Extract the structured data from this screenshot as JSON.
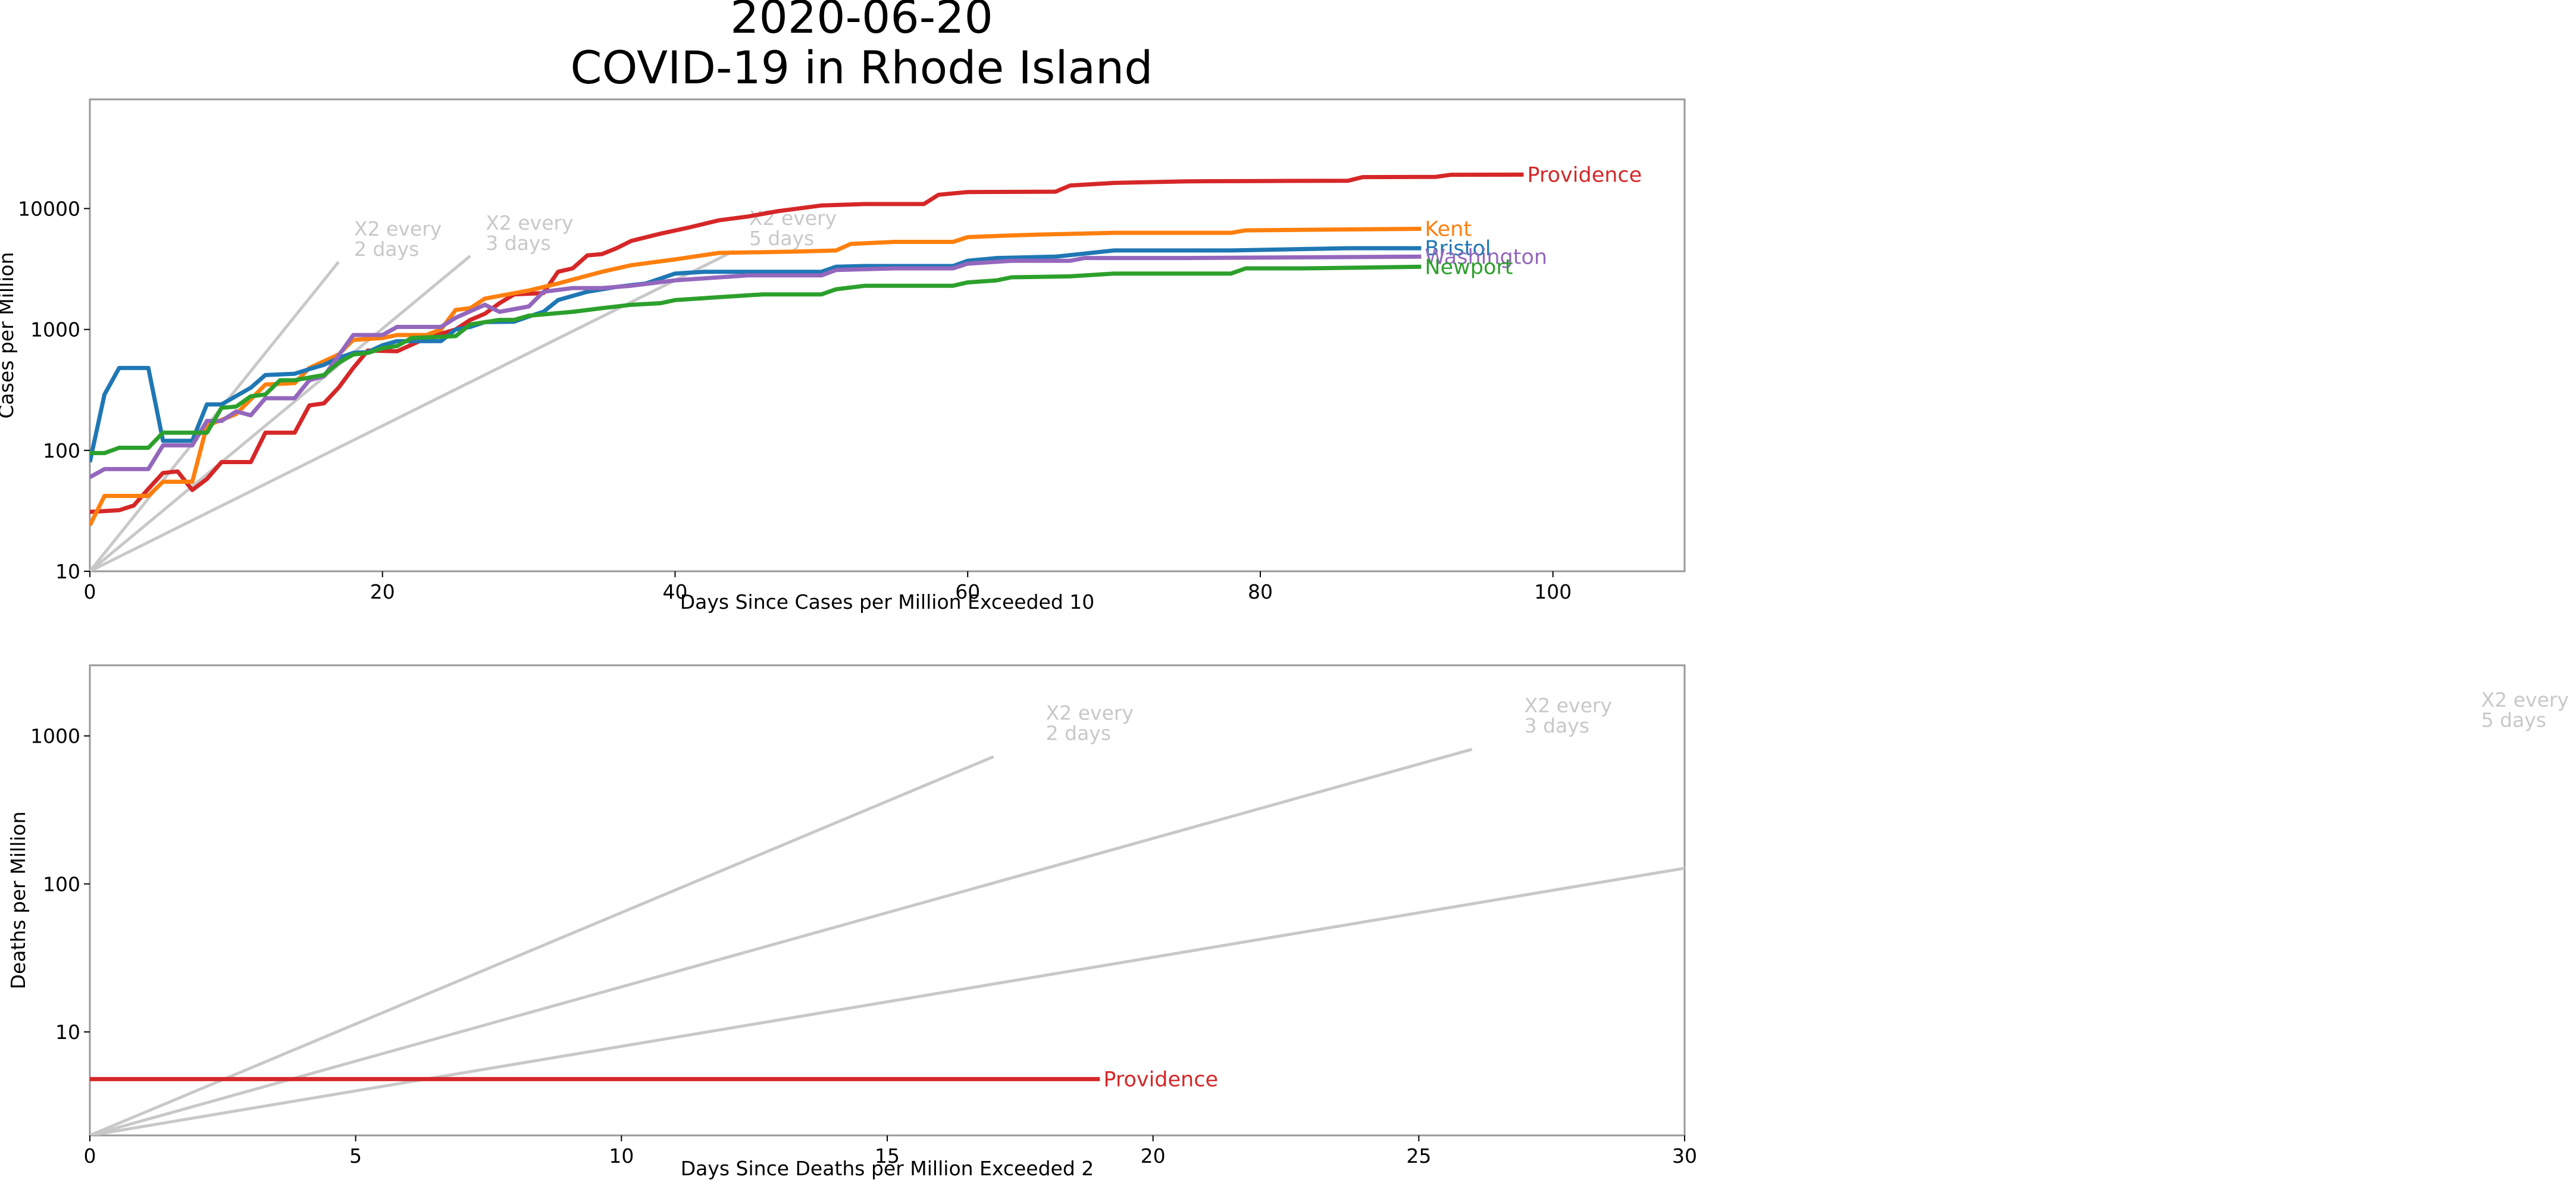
{
  "figure": {
    "title_line1": "2020-06-20",
    "title_line2": "COVID-19 in Rhode Island"
  },
  "colors": {
    "Providence": "#d62728",
    "Kent": "#ff7f0e",
    "Bristol": "#1f77b4",
    "Washington": "#9467bd",
    "Newport": "#2ca02c",
    "reference": "#c8c8c8",
    "axis": "#999999",
    "text": "#000000"
  },
  "chart_data": [
    {
      "type": "line",
      "xlabel": "Days Since Cases per Million Exceeded 10",
      "ylabel": "Cases per Million",
      "y_scale": "log",
      "xlim": [
        0,
        109
      ],
      "ylim": [
        10,
        80000
      ],
      "xticks": [
        0,
        20,
        40,
        60,
        80,
        100
      ],
      "yticks": [
        10,
        100,
        1000,
        10000
      ],
      "ytick_labels": [
        "10",
        "100",
        "1000",
        "10000"
      ],
      "grid": false,
      "reference_lines": [
        {
          "label_line1": "X2 every",
          "label_line2": "2 days",
          "x_end": 17,
          "y_end": 3620
        },
        {
          "label_line1": "X2 every",
          "label_line2": "3 days",
          "x_end": 26,
          "y_end": 4060
        },
        {
          "label_line1": "X2 every",
          "label_line2": "5 days",
          "x_end": 44,
          "y_end": 4440
        }
      ],
      "series": [
        {
          "name": "Providence",
          "points": [
            [
              0,
              31
            ],
            [
              2,
              32
            ],
            [
              3,
              35
            ],
            [
              4,
              48
            ],
            [
              5,
              65
            ],
            [
              6,
              67
            ],
            [
              7,
              47
            ],
            [
              8,
              58
            ],
            [
              9,
              80
            ],
            [
              11,
              80
            ],
            [
              12,
              140
            ],
            [
              14,
              140
            ],
            [
              15,
              235
            ],
            [
              16,
              245
            ],
            [
              17,
              330
            ],
            [
              18,
              480
            ],
            [
              19,
              670
            ],
            [
              21,
              660
            ],
            [
              23,
              850
            ],
            [
              25,
              1000
            ],
            [
              26,
              1200
            ],
            [
              27,
              1350
            ],
            [
              28,
              1650
            ],
            [
              29,
              1950
            ],
            [
              31,
              2000
            ],
            [
              32,
              3000
            ],
            [
              33,
              3200
            ],
            [
              34,
              4100
            ],
            [
              35,
              4200
            ],
            [
              36,
              4700
            ],
            [
              37,
              5400
            ],
            [
              39,
              6200
            ],
            [
              41,
              7000
            ],
            [
              43,
              8000
            ],
            [
              45,
              8600
            ],
            [
              47,
              9500
            ],
            [
              50,
              10600
            ],
            [
              53,
              10900
            ],
            [
              57,
              10900
            ],
            [
              58,
              13000
            ],
            [
              60,
              13700
            ],
            [
              66,
              13800
            ],
            [
              67,
              15500
            ],
            [
              70,
              16300
            ],
            [
              75,
              16800
            ],
            [
              80,
              16900
            ],
            [
              86,
              17000
            ],
            [
              87,
              18200
            ],
            [
              92,
              18300
            ],
            [
              93,
              19000
            ],
            [
              98,
              19100
            ]
          ]
        },
        {
          "name": "Kent",
          "points": [
            [
              0,
              24
            ],
            [
              1,
              42
            ],
            [
              3,
              42
            ],
            [
              4,
              42
            ],
            [
              5,
              55
            ],
            [
              7,
              55
            ],
            [
              8,
              160
            ],
            [
              10,
              200
            ],
            [
              12,
              350
            ],
            [
              14,
              360
            ],
            [
              15,
              480
            ],
            [
              17,
              620
            ],
            [
              18,
              820
            ],
            [
              20,
              850
            ],
            [
              21,
              900
            ],
            [
              23,
              900
            ],
            [
              24,
              1000
            ],
            [
              25,
              1450
            ],
            [
              26,
              1500
            ],
            [
              27,
              1800
            ],
            [
              30,
              2100
            ],
            [
              32,
              2400
            ],
            [
              35,
              3000
            ],
            [
              37,
              3400
            ],
            [
              40,
              3800
            ],
            [
              43,
              4300
            ],
            [
              48,
              4400
            ],
            [
              51,
              4500
            ],
            [
              52,
              5100
            ],
            [
              55,
              5300
            ],
            [
              59,
              5300
            ],
            [
              60,
              5800
            ],
            [
              63,
              6000
            ],
            [
              65,
              6100
            ],
            [
              70,
              6300
            ],
            [
              78,
              6300
            ],
            [
              79,
              6600
            ],
            [
              85,
              6700
            ],
            [
              91,
              6800
            ]
          ]
        },
        {
          "name": "Bristol",
          "points": [
            [
              0,
              80
            ],
            [
              1,
              290
            ],
            [
              2,
              480
            ],
            [
              4,
              480
            ],
            [
              5,
              120
            ],
            [
              7,
              120
            ],
            [
              8,
              240
            ],
            [
              9,
              240
            ],
            [
              11,
              330
            ],
            [
              12,
              420
            ],
            [
              14,
              430
            ],
            [
              15,
              470
            ],
            [
              16,
              510
            ],
            [
              17,
              580
            ],
            [
              18,
              640
            ],
            [
              19,
              650
            ],
            [
              20,
              740
            ],
            [
              21,
              800
            ],
            [
              24,
              800
            ],
            [
              25,
              1000
            ],
            [
              26,
              1050
            ],
            [
              27,
              1150
            ],
            [
              29,
              1160
            ],
            [
              30,
              1280
            ],
            [
              31,
              1400
            ],
            [
              32,
              1750
            ],
            [
              34,
              2050
            ],
            [
              36,
              2250
            ],
            [
              38,
              2400
            ],
            [
              40,
              2900
            ],
            [
              42,
              3000
            ],
            [
              50,
              3000
            ],
            [
              51,
              3300
            ],
            [
              53,
              3350
            ],
            [
              59,
              3350
            ],
            [
              60,
              3700
            ],
            [
              62,
              3900
            ],
            [
              66,
              4000
            ],
            [
              70,
              4500
            ],
            [
              78,
              4500
            ],
            [
              86,
              4700
            ],
            [
              91,
              4700
            ]
          ]
        },
        {
          "name": "Washington",
          "points": [
            [
              0,
              60
            ],
            [
              1,
              70
            ],
            [
              3,
              70
            ],
            [
              4,
              70
            ],
            [
              5,
              110
            ],
            [
              7,
              110
            ],
            [
              8,
              175
            ],
            [
              9,
              175
            ],
            [
              10,
              210
            ],
            [
              11,
              195
            ],
            [
              12,
              270
            ],
            [
              14,
              270
            ],
            [
              15,
              380
            ],
            [
              16,
              410
            ],
            [
              18,
              900
            ],
            [
              20,
              900
            ],
            [
              21,
              1050
            ],
            [
              24,
              1050
            ],
            [
              25,
              1250
            ],
            [
              27,
              1600
            ],
            [
              28,
              1400
            ],
            [
              30,
              1550
            ],
            [
              31,
              2050
            ],
            [
              33,
              2200
            ],
            [
              35,
              2200
            ],
            [
              37,
              2300
            ],
            [
              40,
              2550
            ],
            [
              45,
              2800
            ],
            [
              50,
              2800
            ],
            [
              51,
              3100
            ],
            [
              55,
              3200
            ],
            [
              59,
              3200
            ],
            [
              60,
              3500
            ],
            [
              63,
              3700
            ],
            [
              67,
              3700
            ],
            [
              68,
              3900
            ],
            [
              75,
              3900
            ],
            [
              91,
              4000
            ]
          ]
        },
        {
          "name": "Newport",
          "points": [
            [
              0,
              95
            ],
            [
              1,
              95
            ],
            [
              2,
              105
            ],
            [
              4,
              105
            ],
            [
              5,
              140
            ],
            [
              8,
              140
            ],
            [
              9,
              225
            ],
            [
              10,
              230
            ],
            [
              11,
              280
            ],
            [
              12,
              290
            ],
            [
              13,
              380
            ],
            [
              14,
              380
            ],
            [
              15,
              400
            ],
            [
              16,
              420
            ],
            [
              17,
              530
            ],
            [
              18,
              620
            ],
            [
              19,
              640
            ],
            [
              20,
              700
            ],
            [
              21,
              730
            ],
            [
              22,
              850
            ],
            [
              25,
              880
            ],
            [
              26,
              1100
            ],
            [
              28,
              1200
            ],
            [
              29,
              1200
            ],
            [
              30,
              1300
            ],
            [
              33,
              1400
            ],
            [
              35,
              1500
            ],
            [
              37,
              1600
            ],
            [
              39,
              1650
            ],
            [
              40,
              1750
            ],
            [
              43,
              1850
            ],
            [
              46,
              1950
            ],
            [
              50,
              1950
            ],
            [
              51,
              2150
            ],
            [
              53,
              2300
            ],
            [
              55,
              2300
            ],
            [
              59,
              2300
            ],
            [
              60,
              2450
            ],
            [
              62,
              2550
            ],
            [
              63,
              2700
            ],
            [
              67,
              2750
            ],
            [
              70,
              2900
            ],
            [
              78,
              2900
            ],
            [
              79,
              3200
            ],
            [
              83,
              3200
            ],
            [
              91,
              3300
            ]
          ]
        }
      ]
    },
    {
      "type": "line",
      "xlabel": "Days Since Deaths per Million Exceeded 2",
      "ylabel": "Deaths per Million",
      "y_scale": "log",
      "xlim": [
        0,
        30
      ],
      "ylim": [
        2,
        3000
      ],
      "xticks": [
        0,
        5,
        10,
        15,
        20,
        25,
        30
      ],
      "yticks": [
        10,
        100,
        1000
      ],
      "ytick_labels": [
        "10",
        "100",
        "1000"
      ],
      "grid": false,
      "reference_lines": [
        {
          "label_line1": "X2 every",
          "label_line2": "2 days",
          "x_end": 17,
          "y_end": 724
        },
        {
          "label_line1": "X2 every",
          "label_line2": "3 days",
          "x_end": 26,
          "y_end": 812
        },
        {
          "label_line1": "X2 every",
          "label_line2": "5 days",
          "x_end": 44,
          "y_end": 888
        }
      ],
      "series": [
        {
          "name": "Providence",
          "points": [
            [
              0,
              4.8
            ],
            [
              19,
              4.8
            ]
          ]
        }
      ]
    }
  ]
}
